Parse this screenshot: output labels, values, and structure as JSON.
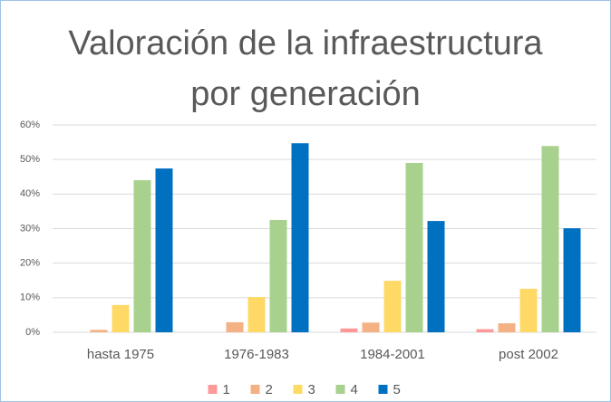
{
  "chart_data": {
    "type": "bar",
    "title": "Valoración de la infraestructura por generación",
    "categories": [
      "hasta 1975",
      "1976-1983",
      "1984-2001",
      "post 2002"
    ],
    "series": [
      {
        "name": "1",
        "color": "#ff9999",
        "values": [
          0,
          0,
          1.1,
          0.9
        ]
      },
      {
        "name": "2",
        "color": "#f4b183",
        "values": [
          0.7,
          2.9,
          2.8,
          2.6
        ]
      },
      {
        "name": "3",
        "color": "#ffd966",
        "values": [
          7.9,
          10.2,
          14.9,
          12.6
        ]
      },
      {
        "name": "4",
        "color": "#a9d18e",
        "values": [
          44,
          32.5,
          49,
          53.9
        ]
      },
      {
        "name": "5",
        "color": "#0070c0",
        "values": [
          47.4,
          54.7,
          32.2,
          30.1
        ]
      }
    ],
    "ylim": [
      0,
      60
    ],
    "yticks": [
      {
        "value": 0,
        "label": "0%"
      },
      {
        "value": 10,
        "label": "10%"
      },
      {
        "value": 20,
        "label": "20%"
      },
      {
        "value": 30,
        "label": "30%"
      },
      {
        "value": 40,
        "label": "40%"
      },
      {
        "value": 50,
        "label": "50%"
      },
      {
        "value": 60,
        "label": "60%"
      }
    ],
    "grid": true,
    "legend": "bottom"
  }
}
